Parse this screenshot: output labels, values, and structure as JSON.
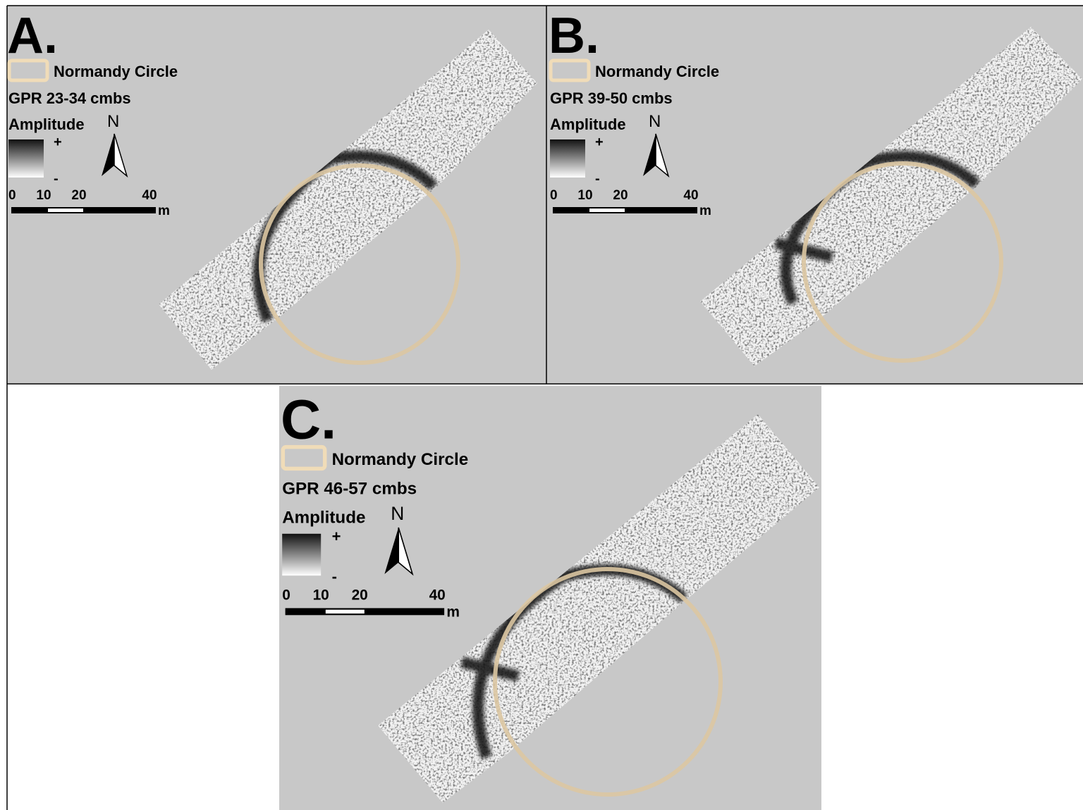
{
  "panels": [
    {
      "label": "A.",
      "legend": "Normandy Circle",
      "depth": "GPR 23-34 cmbs",
      "amplitude": "Amplitude",
      "plus": "+",
      "minus": "-",
      "north": "N",
      "scale": [
        "0",
        "10",
        "20",
        "40"
      ],
      "unit": "m"
    },
    {
      "label": "B.",
      "legend": "Normandy Circle",
      "depth": "GPR 39-50 cmbs",
      "amplitude": "Amplitude",
      "plus": "+",
      "minus": "-",
      "north": "N",
      "scale": [
        "0",
        "10",
        "20",
        "40"
      ],
      "unit": "m"
    },
    {
      "label": "C.",
      "legend": "Normandy Circle",
      "depth": "GPR 46-57 cmbs",
      "amplitude": "Amplitude",
      "plus": "+",
      "minus": "-",
      "north": "N",
      "scale": [
        "0",
        "10",
        "20",
        "40"
      ],
      "unit": "m"
    }
  ]
}
